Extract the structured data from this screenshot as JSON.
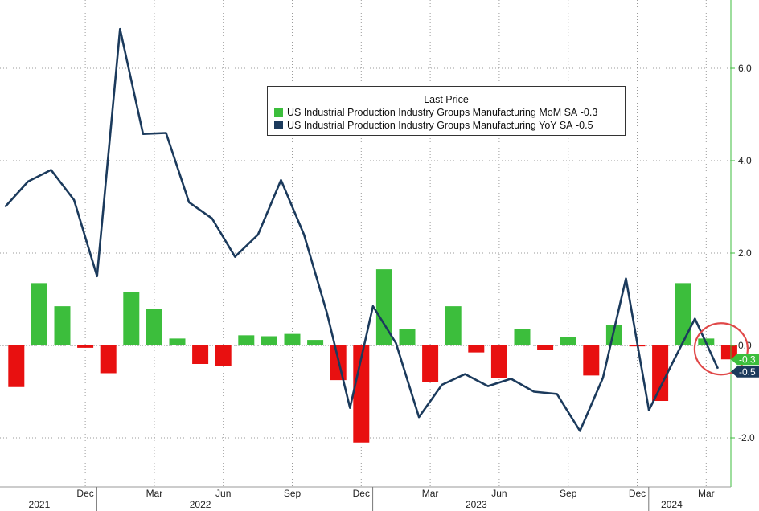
{
  "chart_data": {
    "type": "bar+line",
    "title": "",
    "xlabel": "",
    "ylabel": "",
    "ylim": [
      -3.1,
      7.5
    ],
    "yticks": [
      "6.0",
      "4.0",
      "2.0",
      "0.0",
      "-2.0"
    ],
    "grid": true,
    "legend_position": "top-center",
    "legend_title": "Last Price",
    "months": [
      "Sep 2021",
      "Oct 2021",
      "Nov 2021",
      "Dec 2021",
      "Jan 2022",
      "Feb 2022",
      "Mar 2022",
      "Apr 2022",
      "May 2022",
      "Jun 2022",
      "Jul 2022",
      "Aug 2022",
      "Sep 2022",
      "Oct 2022",
      "Nov 2022",
      "Dec 2022",
      "Jan 2023",
      "Feb 2023",
      "Mar 2023",
      "Apr 2023",
      "May 2023",
      "Jun 2023",
      "Jul 2023",
      "Aug 2023",
      "Sep 2023",
      "Oct 2023",
      "Nov 2023",
      "Dec 2023",
      "Jan 2024",
      "Feb 2024",
      "Mar 2024",
      "Apr 2024"
    ],
    "month_labels": [
      "",
      "",
      "",
      "Dec",
      "",
      "",
      "Mar",
      "",
      "",
      "Jun",
      "",
      "",
      "Sep",
      "",
      "",
      "Dec",
      "",
      "",
      "Mar",
      "",
      "",
      "Jun",
      "",
      "",
      "Sep",
      "",
      "",
      "Dec",
      "",
      "",
      "Mar",
      ""
    ],
    "year_labels": [
      {
        "label": "2021",
        "month_index": 1
      },
      {
        "label": "2022",
        "month_index": 8
      },
      {
        "label": "2023",
        "month_index": 20
      },
      {
        "label": "2024",
        "month_index": 28.5
      }
    ],
    "year_boundaries": [
      3.5,
      15.5,
      27.5
    ],
    "series": [
      {
        "name": "US Industrial Production Industry Groups Manufacturing MoM SA",
        "last_value": "-0.3",
        "kind": "bar",
        "color": "#3cbe3c",
        "negative_color": "#e81010",
        "values": [
          -0.9,
          1.35,
          0.85,
          -0.05,
          -0.6,
          1.15,
          0.8,
          0.15,
          -0.4,
          -0.45,
          0.22,
          0.2,
          0.25,
          0.12,
          -0.75,
          -2.1,
          1.65,
          0.35,
          -0.8,
          0.85,
          -0.15,
          -0.7,
          0.35,
          -0.1,
          0.18,
          -0.65,
          0.45,
          -0.02,
          -1.2,
          1.35,
          0.15,
          -0.3
        ]
      },
      {
        "name": "US Industrial Production Industry Groups Manufacturing YoY SA",
        "last_value": "-0.5",
        "kind": "line",
        "color": "#1b3a5c",
        "values": [
          3.0,
          3.55,
          3.8,
          3.15,
          1.5,
          6.85,
          4.58,
          4.6,
          3.1,
          2.75,
          1.92,
          2.4,
          3.58,
          2.4,
          0.7,
          -1.35,
          0.85,
          0.05,
          -1.55,
          -0.85,
          -0.62,
          -0.88,
          -0.72,
          -1.0,
          -1.05,
          -1.85,
          -0.7,
          1.45,
          -1.4,
          -0.4,
          0.58,
          -0.5
        ]
      }
    ],
    "annotation": "red circle highlighting latest values"
  }
}
